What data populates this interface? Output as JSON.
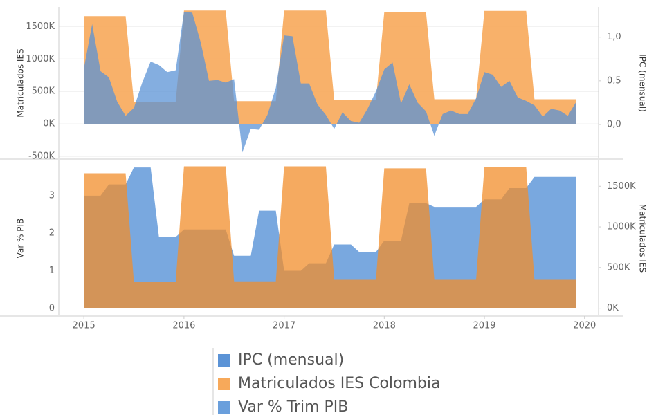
{
  "chart_data": [
    {
      "type": "area",
      "xlim": [
        2014.75,
        2020.14
      ],
      "grid": true,
      "x": [
        2015,
        2015.083,
        2015.167,
        2015.25,
        2015.333,
        2015.417,
        2015.5,
        2015.583,
        2015.667,
        2015.75,
        2015.833,
        2015.917,
        2016,
        2016.083,
        2016.167,
        2016.25,
        2016.333,
        2016.417,
        2016.5,
        2016.583,
        2016.667,
        2016.75,
        2016.833,
        2016.917,
        2017,
        2017.083,
        2017.167,
        2017.25,
        2017.333,
        2017.417,
        2017.5,
        2017.583,
        2017.667,
        2017.75,
        2017.833,
        2017.917,
        2018,
        2018.083,
        2018.167,
        2018.25,
        2018.333,
        2018.417,
        2018.5,
        2018.583,
        2018.667,
        2018.75,
        2018.833,
        2018.917,
        2019,
        2019.083,
        2019.167,
        2019.25,
        2019.333,
        2019.417,
        2019.5,
        2019.583,
        2019.667,
        2019.75,
        2019.833,
        2019.917
      ],
      "ylabel": "Matriculados IES",
      "y2label": "IPC (mensual)",
      "ylim": [
        -520000,
        1780000
      ],
      "yticks": [
        {
          "value": -500000,
          "label": "-500K"
        },
        {
          "value": 0,
          "label": "0K"
        },
        {
          "value": 500000,
          "label": "500K"
        },
        {
          "value": 1000000,
          "label": "1000K"
        },
        {
          "value": 1500000,
          "label": "1500K"
        }
      ],
      "y2lim": [
        -0.38,
        1.33
      ],
      "y2ticks": [
        {
          "value": 0,
          "label": "0,0"
        },
        {
          "value": 0.5,
          "label": "0,5"
        },
        {
          "value": 1,
          "label": "1,0"
        }
      ],
      "series": [
        {
          "name": "Matriculados IES Colombia",
          "color": "#f7a95a",
          "axis": "y",
          "values": [
            1660000,
            1660000,
            1660000,
            1660000,
            1660000,
            1660000,
            340000,
            340000,
            340000,
            340000,
            340000,
            340000,
            1745000,
            1745000,
            1745000,
            1745000,
            1745000,
            1745000,
            350000,
            350000,
            350000,
            350000,
            350000,
            350000,
            1745000,
            1745000,
            1745000,
            1745000,
            1745000,
            1745000,
            370000,
            370000,
            370000,
            370000,
            370000,
            370000,
            1720000,
            1720000,
            1720000,
            1720000,
            1720000,
            1720000,
            380000,
            380000,
            380000,
            380000,
            380000,
            380000,
            1740000,
            1740000,
            1740000,
            1740000,
            1740000,
            1740000,
            380000,
            380000,
            380000,
            380000,
            380000,
            380000
          ]
        },
        {
          "name": "IPC (mensual)",
          "color": "#5b93d6",
          "axis": "y2",
          "values": [
            0.64,
            1.15,
            0.61,
            0.54,
            0.26,
            0.1,
            0.19,
            0.48,
            0.72,
            0.68,
            0.6,
            0.62,
            1.29,
            1.28,
            0.94,
            0.5,
            0.51,
            0.48,
            0.52,
            -0.32,
            -0.05,
            -0.06,
            0.11,
            0.42,
            1.02,
            1.01,
            0.47,
            0.47,
            0.23,
            0.11,
            -0.05,
            0.14,
            0.04,
            0.02,
            0.18,
            0.38,
            0.63,
            0.71,
            0.24,
            0.46,
            0.25,
            0.15,
            -0.13,
            0.12,
            0.16,
            0.12,
            0.12,
            0.3,
            0.6,
            0.57,
            0.43,
            0.5,
            0.31,
            0.27,
            0.22,
            0.09,
            0.18,
            0.16,
            0.1,
            0.26
          ]
        }
      ]
    },
    {
      "type": "area",
      "xlim": [
        2014.75,
        2020.14
      ],
      "grid": false,
      "x": [
        2015,
        2015.083,
        2015.167,
        2015.25,
        2015.333,
        2015.417,
        2015.5,
        2015.583,
        2015.667,
        2015.75,
        2015.833,
        2015.917,
        2016,
        2016.083,
        2016.167,
        2016.25,
        2016.333,
        2016.417,
        2016.5,
        2016.583,
        2016.667,
        2016.75,
        2016.833,
        2016.917,
        2017,
        2017.083,
        2017.167,
        2017.25,
        2017.333,
        2017.417,
        2017.5,
        2017.583,
        2017.667,
        2017.75,
        2017.833,
        2017.917,
        2018,
        2018.083,
        2018.167,
        2018.25,
        2018.333,
        2018.417,
        2018.5,
        2018.583,
        2018.667,
        2018.75,
        2018.833,
        2018.917,
        2019,
        2019.083,
        2019.167,
        2019.25,
        2019.333,
        2019.417,
        2019.5,
        2019.583,
        2019.667,
        2019.75,
        2019.833,
        2019.917
      ],
      "xticks": [
        2015,
        2016,
        2017,
        2018,
        2019,
        2020
      ],
      "ylabel": "Var % PIB",
      "y2label": "Matriculados IES",
      "ylim": [
        -0.17,
        3.9
      ],
      "yticks": [
        0,
        1,
        2,
        3
      ],
      "y2lim": [
        -80000,
        1800000
      ],
      "y2ticks": [
        {
          "value": 0,
          "label": "0K"
        },
        {
          "value": 500000,
          "label": "500K"
        },
        {
          "value": 1000000,
          "label": "1000K"
        },
        {
          "value": 1500000,
          "label": "1500K"
        }
      ],
      "series": [
        {
          "name": "Var % Trim PIB",
          "color": "#6a9fdc",
          "axis": "y",
          "values": [
            3.0,
            3.0,
            3.0,
            3.3,
            3.3,
            3.3,
            3.75,
            3.75,
            3.75,
            1.9,
            1.9,
            1.9,
            2.1,
            2.1,
            2.1,
            2.1,
            2.1,
            2.1,
            1.4,
            1.4,
            1.4,
            2.6,
            2.6,
            2.6,
            1.0,
            1.0,
            1.0,
            1.2,
            1.2,
            1.2,
            1.7,
            1.7,
            1.7,
            1.5,
            1.5,
            1.5,
            1.8,
            1.8,
            1.8,
            2.8,
            2.8,
            2.8,
            2.7,
            2.7,
            2.7,
            2.7,
            2.7,
            2.7,
            2.9,
            2.9,
            2.9,
            3.2,
            3.2,
            3.2,
            3.5,
            3.5,
            3.5,
            3.5,
            3.5,
            3.5
          ]
        },
        {
          "name": "Matriculados IES Colombia",
          "color": "#f28e2b",
          "axis": "y2",
          "values": [
            1660000,
            1660000,
            1660000,
            1660000,
            1660000,
            1660000,
            320000,
            320000,
            320000,
            320000,
            320000,
            320000,
            1745000,
            1745000,
            1745000,
            1745000,
            1745000,
            1745000,
            330000,
            330000,
            330000,
            330000,
            330000,
            330000,
            1745000,
            1745000,
            1745000,
            1745000,
            1745000,
            1745000,
            350000,
            350000,
            350000,
            350000,
            350000,
            350000,
            1720000,
            1720000,
            1720000,
            1720000,
            1720000,
            1720000,
            350000,
            350000,
            350000,
            350000,
            350000,
            350000,
            1740000,
            1740000,
            1740000,
            1740000,
            1740000,
            1740000,
            350000,
            350000,
            350000,
            350000,
            350000,
            350000
          ]
        }
      ]
    }
  ]
}
